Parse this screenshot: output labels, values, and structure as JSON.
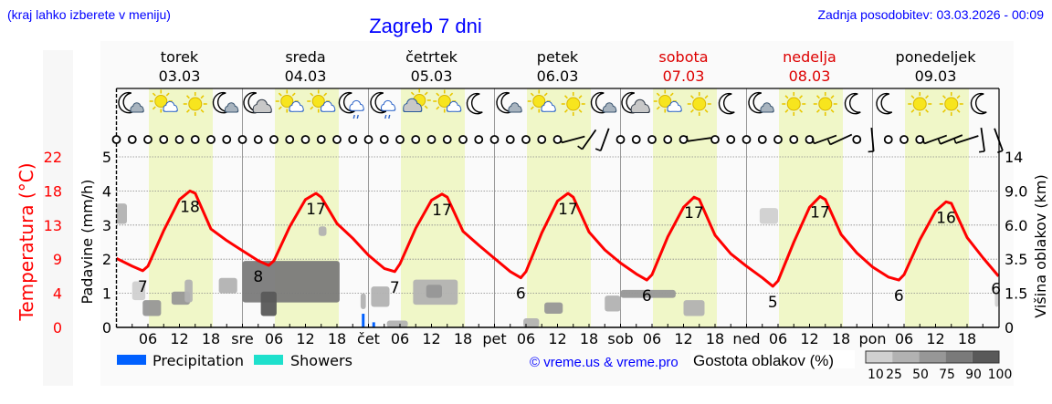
{
  "header": {
    "hint": "(kraj lahko izberete v meniju)",
    "title": "Zagreb 7 dni",
    "updated": "Zadnja posodobitev: 03.03.2026 - 00:09"
  },
  "colors": {
    "temperature": "#ff0000",
    "weekend": "#dd0000",
    "precipitation": "#0060ff",
    "showers": "#1ee0cc",
    "daylight": "#f0f7c8",
    "link": "#0000ff"
  },
  "legend": {
    "precipitation": "Precipitation",
    "showers": "Showers",
    "copyright": "© vreme.us & vreme.pro",
    "cloud_density_title": "Gostota oblakov (%)",
    "cloud_density_levels": [
      "10",
      "25",
      "50",
      "75",
      "90",
      "100"
    ],
    "cloud_density_colors": [
      "#d0d0d0",
      "#b2b2b2",
      "#979797",
      "#7a7a7a",
      "#595959"
    ]
  },
  "chart_data": {
    "type": "line",
    "title": "Zagreb 7 dni",
    "daylight_hours": [
      6,
      18
    ],
    "days": [
      {
        "name": "torek",
        "date": "03.03",
        "abbr": "",
        "weekend": false
      },
      {
        "name": "sreda",
        "date": "04.03",
        "abbr": "sre",
        "weekend": false
      },
      {
        "name": "četrtek",
        "date": "05.03",
        "abbr": "čet",
        "weekend": false
      },
      {
        "name": "petek",
        "date": "06.03",
        "abbr": "pet",
        "weekend": false
      },
      {
        "name": "sobota",
        "date": "07.03",
        "abbr": "sob",
        "weekend": true
      },
      {
        "name": "nedelja",
        "date": "08.03",
        "abbr": "ned",
        "weekend": true
      },
      {
        "name": "ponedeljek",
        "date": "09.03",
        "abbr": "pon",
        "weekend": false
      }
    ],
    "hour_ticks": [
      "06",
      "12",
      "18"
    ],
    "axes": {
      "precipitation": {
        "label": "Padavine (mm/h)",
        "ticks": [
          "0",
          "1",
          "2",
          "3",
          "4",
          "5"
        ],
        "range": [
          0,
          5
        ]
      },
      "temperature": {
        "label": "Temperatura (°C)",
        "ticks": [
          "0",
          "4",
          "9",
          "13",
          "18",
          "22"
        ],
        "range": [
          0,
          22
        ]
      },
      "cloud_height": {
        "label": "Višina oblakov (km)",
        "ticks": [
          "0",
          "1.5",
          "3.5",
          "6.0",
          "9.0",
          "14"
        ]
      }
    },
    "temperature": [
      {
        "date": "03.03",
        "hours": [
          0,
          3,
          5,
          6,
          9,
          12,
          14,
          15,
          18,
          21
        ],
        "values": [
          8.9,
          7.9,
          7.3,
          7.9,
          12.5,
          16.5,
          17.6,
          17.3,
          12.7,
          11.2
        ]
      },
      {
        "date": "04.03",
        "hours": [
          0,
          3,
          5,
          6,
          9,
          12,
          14,
          15,
          18,
          21
        ],
        "values": [
          9.9,
          8.6,
          8.0,
          8.6,
          13.0,
          16.5,
          17.3,
          16.8,
          13.4,
          11.5
        ]
      },
      {
        "date": "05.03",
        "hours": [
          0,
          3,
          5,
          6,
          9,
          12,
          14,
          15,
          18,
          21
        ],
        "values": [
          9.3,
          7.6,
          7.2,
          8.2,
          12.8,
          16.4,
          17.2,
          16.8,
          12.4,
          10.6
        ]
      },
      {
        "date": "06.03",
        "hours": [
          0,
          3,
          5,
          6,
          9,
          12,
          14,
          15,
          18,
          21
        ],
        "values": [
          8.9,
          7.2,
          6.4,
          7.2,
          12.2,
          16.3,
          17.3,
          16.8,
          12.3,
          10.0
        ]
      },
      {
        "date": "07.03",
        "hours": [
          0,
          3,
          5,
          6,
          9,
          12,
          14,
          15,
          18,
          21
        ],
        "values": [
          8.3,
          6.9,
          6.1,
          6.8,
          11.7,
          15.5,
          16.8,
          16.5,
          11.9,
          9.5
        ]
      },
      {
        "date": "08.03",
        "hours": [
          0,
          3,
          5,
          6,
          9,
          12,
          14,
          15,
          18,
          21
        ],
        "values": [
          7.9,
          6.4,
          5.3,
          6.0,
          11.0,
          15.5,
          16.9,
          16.5,
          12.0,
          9.6
        ]
      },
      {
        "date": "09.03",
        "hours": [
          0,
          3,
          5,
          6,
          9,
          12,
          14,
          15,
          18,
          21,
          24
        ],
        "values": [
          7.8,
          6.5,
          6.1,
          6.8,
          11.3,
          15.0,
          16.2,
          16.0,
          11.6,
          9.0,
          6.6
        ]
      }
    ],
    "temperature_labels": [
      {
        "date": "03.03",
        "hour": 5,
        "value": "7"
      },
      {
        "date": "03.03",
        "hour": 14,
        "value": "18"
      },
      {
        "date": "04.03",
        "hour": 3,
        "value": "8"
      },
      {
        "date": "04.03",
        "hour": 14,
        "value": "17"
      },
      {
        "date": "05.03",
        "hour": 5,
        "value": "7"
      },
      {
        "date": "05.03",
        "hour": 14,
        "value": "17"
      },
      {
        "date": "06.03",
        "hour": 5,
        "value": "6"
      },
      {
        "date": "06.03",
        "hour": 14,
        "value": "17"
      },
      {
        "date": "07.03",
        "hour": 5,
        "value": "6"
      },
      {
        "date": "07.03",
        "hour": 14,
        "value": "17"
      },
      {
        "date": "08.03",
        "hour": 5,
        "value": "5"
      },
      {
        "date": "08.03",
        "hour": 14,
        "value": "17"
      },
      {
        "date": "09.03",
        "hour": 5,
        "value": "6"
      },
      {
        "date": "09.03",
        "hour": 14,
        "value": "16"
      },
      {
        "date": "09.03",
        "hour": 23.5,
        "value": "6"
      }
    ],
    "precipitation": [
      {
        "date": "04.03",
        "hour": 23,
        "value": 0.4,
        "kind": "Precipitation"
      },
      {
        "date": "05.03",
        "hour": 1,
        "value": 0.15,
        "kind": "Precipitation"
      }
    ],
    "clouds": [
      {
        "date": "03.03",
        "from": 0,
        "to": 2,
        "base_km": 6.1,
        "top_km": 7.9,
        "density": 25
      },
      {
        "date": "03.03",
        "from": 3,
        "to": 5.5,
        "base_km": 1.2,
        "top_km": 2.2,
        "density": 10
      },
      {
        "date": "03.03",
        "from": 5,
        "to": 8.5,
        "base_km": 0.5,
        "top_km": 1.2,
        "density": 50
      },
      {
        "date": "03.03",
        "from": 10.5,
        "to": 14,
        "base_km": 1.0,
        "top_km": 1.6,
        "density": 50
      },
      {
        "date": "03.03",
        "from": 13,
        "to": 14.5,
        "base_km": 1.1,
        "top_km": 2.3,
        "density": 25
      },
      {
        "date": "03.03",
        "from": 19.5,
        "to": 23,
        "base_km": 1.5,
        "top_km": 2.4,
        "density": 25
      },
      {
        "date": "04.03",
        "from": 0,
        "to": 18.5,
        "base_km": 1.1,
        "top_km": 3.4,
        "density": 75
      },
      {
        "date": "04.03",
        "from": 3.5,
        "to": 6.5,
        "base_km": 0.5,
        "top_km": 1.6,
        "density": 90
      },
      {
        "date": "04.03",
        "from": 14.5,
        "to": 16,
        "base_km": 5.2,
        "top_km": 5.9,
        "density": 25
      },
      {
        "date": "04.03",
        "from": 22.5,
        "to": 23.5,
        "base_km": 0.8,
        "top_km": 1.5,
        "density": 25
      },
      {
        "date": "05.03",
        "from": 0.5,
        "to": 4,
        "base_km": 0.9,
        "top_km": 1.9,
        "density": 25
      },
      {
        "date": "05.03",
        "from": 3.5,
        "to": 7.5,
        "base_km": 0,
        "top_km": 0.3,
        "density": 25
      },
      {
        "date": "05.03",
        "from": 8.5,
        "to": 17,
        "base_km": 1.0,
        "top_km": 2.3,
        "density": 25
      },
      {
        "date": "05.03",
        "from": 11,
        "to": 14,
        "base_km": 1.3,
        "top_km": 2.0,
        "density": 50
      },
      {
        "date": "06.03",
        "from": 5.5,
        "to": 8.5,
        "base_km": 0,
        "top_km": 0.4,
        "density": 25
      },
      {
        "date": "06.03",
        "from": 9.5,
        "to": 13,
        "base_km": 0.6,
        "top_km": 1.1,
        "density": 50
      },
      {
        "date": "07.03",
        "from": -3,
        "to": 0,
        "base_km": 0.7,
        "top_km": 1.4,
        "density": 25
      },
      {
        "date": "07.03",
        "from": 0,
        "to": 10.5,
        "base_km": 1.3,
        "top_km": 1.7,
        "density": 50
      },
      {
        "date": "07.03",
        "from": 12,
        "to": 16,
        "base_km": 0.5,
        "top_km": 1.2,
        "density": 25
      },
      {
        "date": "08.03",
        "from": 2.5,
        "to": 6,
        "base_km": 6.1,
        "top_km": 7.5,
        "density": 10
      },
      {
        "date": "09.03",
        "from": 23.3,
        "to": 24,
        "base_km": 0.9,
        "top_km": 1.7,
        "density": 10
      }
    ],
    "weather_icons": [
      {
        "date": "03.03",
        "icons": [
          "moon-cloud",
          "sun-cloud",
          "sun",
          "moon-cloud"
        ]
      },
      {
        "date": "04.03",
        "icons": [
          "moon-cloud-big",
          "sun-cloud",
          "sun-cloud",
          "moon-rain"
        ]
      },
      {
        "date": "05.03",
        "icons": [
          "moon-rain",
          "cloud-sun",
          "sun-cloud",
          "moon"
        ]
      },
      {
        "date": "06.03",
        "icons": [
          "moon-cloud",
          "sun-cloud",
          "sun",
          "moon-cloud"
        ]
      },
      {
        "date": "07.03",
        "icons": [
          "moon-cloud-big",
          "sun-cloud",
          "sun",
          "moon"
        ]
      },
      {
        "date": "08.03",
        "icons": [
          "moon-cloud",
          "sun",
          "sun",
          "moon"
        ]
      },
      {
        "date": "09.03",
        "icons": [
          "moon",
          "sun",
          "sun",
          "moon"
        ]
      }
    ],
    "wind": [
      {
        "date": "03.03",
        "obs": [
          "calm",
          "calm",
          "calm",
          "calm",
          "calm",
          "calm",
          "calm",
          "calm"
        ]
      },
      {
        "date": "04.03",
        "obs": [
          "calm",
          "calm",
          "calm",
          "calm",
          "calm",
          "calm",
          "calm",
          "calm"
        ]
      },
      {
        "date": "05.03",
        "obs": [
          "calm",
          "calm",
          "calm",
          "calm",
          "calm",
          "calm",
          "calm",
          "calm"
        ]
      },
      {
        "date": "06.03",
        "obs": [
          "calm",
          "calm",
          "calm",
          "calm",
          "calm",
          255,
          215,
          200
        ]
      },
      {
        "date": "07.03",
        "obs": [
          "calm",
          "calm",
          "calm",
          "calm",
          "calm",
          262,
          "calm",
          "calm"
        ]
      },
      {
        "date": "08.03",
        "obs": [
          "calm",
          "calm",
          "calm",
          "calm",
          "calm",
          250,
          245,
          "calm"
        ]
      },
      {
        "date": "09.03",
        "obs": [
          175,
          "calm",
          "calm",
          "calm",
          250,
          248,
          252,
          172
        ]
      },
      {
        "date": "10.03",
        "obs": [
          160
        ]
      }
    ]
  }
}
